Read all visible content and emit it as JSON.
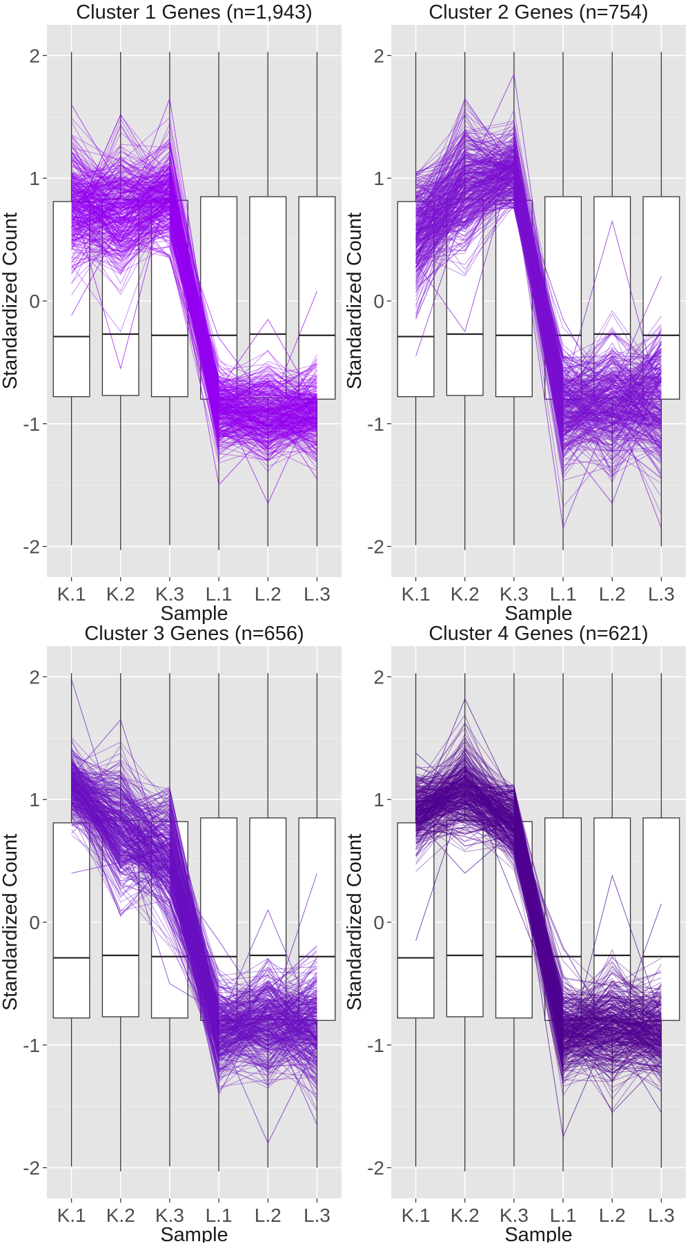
{
  "chart_data": [
    {
      "type": "line",
      "title": "Cluster 1 Genes (n=1,943)",
      "xlabel": "Sample",
      "ylabel": "Standardized Count",
      "categories": [
        "K.1",
        "K.2",
        "K.3",
        "L.1",
        "L.2",
        "L.3"
      ],
      "ylim": [
        -2.25,
        2.25
      ],
      "yticks": [
        -2,
        -1,
        0,
        1,
        2
      ],
      "ytick_labels": [
        "-2",
        "-1",
        "0",
        "1",
        "2"
      ],
      "grid": true,
      "line_color": "#9400f0",
      "profile_mean": [
        0.78,
        0.75,
        0.85,
        -0.88,
        -0.92,
        -0.92
      ],
      "profile_spread": [
        0.26,
        0.3,
        0.22,
        0.18,
        0.22,
        0.2
      ],
      "profile_min": [
        -0.12,
        -0.55,
        0.35,
        -1.5,
        -1.65,
        -1.45
      ],
      "profile_max": [
        1.6,
        1.52,
        1.65,
        -0.3,
        -0.15,
        0.08
      ],
      "boxes": [
        {
          "q1": -0.78,
          "median": -0.29,
          "q3": 0.81,
          "min": -1.99,
          "max": 2.03
        },
        {
          "q1": -0.77,
          "median": -0.27,
          "q3": 0.83,
          "min": -2.03,
          "max": 2.03
        },
        {
          "q1": -0.78,
          "median": -0.28,
          "q3": 0.82,
          "min": -1.99,
          "max": 2.03
        },
        {
          "q1": -0.8,
          "median": -0.28,
          "q3": 0.85,
          "min": -2.03,
          "max": 2.03
        },
        {
          "q1": -0.79,
          "median": -0.27,
          "q3": 0.85,
          "min": -2.0,
          "max": 2.03
        },
        {
          "q1": -0.8,
          "median": -0.28,
          "q3": 0.85,
          "min": -2.0,
          "max": 2.03
        }
      ]
    },
    {
      "type": "line",
      "title": "Cluster 2 Genes (n=754)",
      "xlabel": "Sample",
      "ylabel": "Standardized Count",
      "categories": [
        "K.1",
        "K.2",
        "K.3",
        "L.1",
        "L.2",
        "L.3"
      ],
      "ylim": [
        -2.25,
        2.25
      ],
      "yticks": [
        -2,
        -1,
        0,
        1,
        2
      ],
      "ytick_labels": [
        "-2",
        "-1",
        "0",
        "1",
        "2"
      ],
      "grid": true,
      "line_color": "#7a0fd0",
      "profile_mean": [
        0.55,
        0.92,
        1.05,
        -0.88,
        -0.82,
        -0.8
      ],
      "profile_spread": [
        0.3,
        0.3,
        0.18,
        0.28,
        0.3,
        0.32
      ],
      "profile_min": [
        -0.45,
        -0.25,
        0.75,
        -1.85,
        -1.65,
        -1.85
      ],
      "profile_max": [
        1.05,
        1.65,
        1.85,
        -0.15,
        0.65,
        0.2
      ],
      "boxes": [
        {
          "q1": -0.78,
          "median": -0.29,
          "q3": 0.81,
          "min": -1.99,
          "max": 2.03
        },
        {
          "q1": -0.77,
          "median": -0.27,
          "q3": 0.83,
          "min": -2.03,
          "max": 2.03
        },
        {
          "q1": -0.78,
          "median": -0.28,
          "q3": 0.82,
          "min": -1.99,
          "max": 2.03
        },
        {
          "q1": -0.8,
          "median": -0.28,
          "q3": 0.85,
          "min": -2.03,
          "max": 2.03
        },
        {
          "q1": -0.79,
          "median": -0.27,
          "q3": 0.85,
          "min": -2.0,
          "max": 2.03
        },
        {
          "q1": -0.8,
          "median": -0.28,
          "q3": 0.85,
          "min": -2.0,
          "max": 2.03
        }
      ]
    },
    {
      "type": "line",
      "title": "Cluster 3 Genes (n=656)",
      "xlabel": "Sample",
      "ylabel": "Standardized Count",
      "categories": [
        "K.1",
        "K.2",
        "K.3",
        "L.1",
        "L.2",
        "L.3"
      ],
      "ylim": [
        -2.25,
        2.25
      ],
      "yticks": [
        -2,
        -1,
        0,
        1,
        2
      ],
      "ytick_labels": [
        "-2",
        "-1",
        "0",
        "1",
        "2"
      ],
      "grid": true,
      "line_color": "#6a0fc0",
      "profile_mean": [
        1.1,
        0.75,
        0.52,
        -0.88,
        -0.82,
        -0.85
      ],
      "profile_spread": [
        0.16,
        0.3,
        0.3,
        0.22,
        0.25,
        0.28
      ],
      "profile_min": [
        0.4,
        0.05,
        -0.5,
        -1.4,
        -1.8,
        -1.65
      ],
      "profile_max": [
        1.98,
        1.65,
        1.1,
        -0.15,
        0.1,
        0.4
      ],
      "boxes": [
        {
          "q1": -0.78,
          "median": -0.29,
          "q3": 0.81,
          "min": -1.99,
          "max": 2.03
        },
        {
          "q1": -0.77,
          "median": -0.27,
          "q3": 0.83,
          "min": -2.03,
          "max": 2.03
        },
        {
          "q1": -0.78,
          "median": -0.28,
          "q3": 0.82,
          "min": -1.99,
          "max": 2.03
        },
        {
          "q1": -0.8,
          "median": -0.28,
          "q3": 0.85,
          "min": -2.03,
          "max": 2.03
        },
        {
          "q1": -0.79,
          "median": -0.27,
          "q3": 0.85,
          "min": -2.0,
          "max": 2.03
        },
        {
          "q1": -0.8,
          "median": -0.28,
          "q3": 0.85,
          "min": -2.0,
          "max": 2.03
        }
      ]
    },
    {
      "type": "line",
      "title": "Cluster 4 Genes (n=621)",
      "xlabel": "Sample",
      "ylabel": "Standardized Count",
      "categories": [
        "K.1",
        "K.2",
        "K.3",
        "L.1",
        "L.2",
        "L.3"
      ],
      "ylim": [
        -2.25,
        2.25
      ],
      "yticks": [
        -2,
        -1,
        0,
        1,
        2
      ],
      "ytick_labels": [
        "-2",
        "-1",
        "0",
        "1",
        "2"
      ],
      "grid": true,
      "line_color": "#4f0090",
      "profile_mean": [
        0.9,
        1.1,
        0.82,
        -0.88,
        -0.85,
        -0.88
      ],
      "profile_spread": [
        0.18,
        0.22,
        0.18,
        0.22,
        0.25,
        0.22
      ],
      "profile_min": [
        -0.15,
        0.4,
        0.2,
        -1.75,
        -1.55,
        -1.55
      ],
      "profile_max": [
        1.38,
        1.82,
        1.12,
        -0.2,
        0.38,
        0.15
      ],
      "boxes": [
        {
          "q1": -0.78,
          "median": -0.29,
          "q3": 0.81,
          "min": -1.99,
          "max": 2.03
        },
        {
          "q1": -0.77,
          "median": -0.27,
          "q3": 0.83,
          "min": -2.03,
          "max": 2.03
        },
        {
          "q1": -0.78,
          "median": -0.28,
          "q3": 0.82,
          "min": -1.99,
          "max": 2.03
        },
        {
          "q1": -0.8,
          "median": -0.28,
          "q3": 0.85,
          "min": -2.03,
          "max": 2.03
        },
        {
          "q1": -0.79,
          "median": -0.27,
          "q3": 0.85,
          "min": -2.0,
          "max": 2.03
        },
        {
          "q1": -0.8,
          "median": -0.28,
          "q3": 0.85,
          "min": -2.0,
          "max": 2.03
        }
      ]
    }
  ]
}
